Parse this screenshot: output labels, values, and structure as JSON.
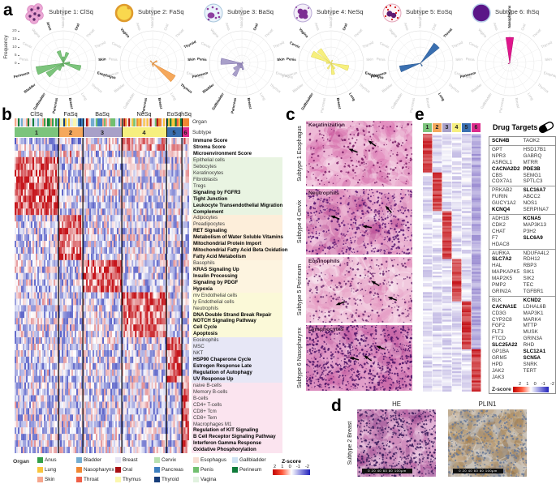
{
  "figure": {
    "panel_labels": {
      "a": "a",
      "b": "b",
      "c": "c",
      "d": "d",
      "e": "e"
    }
  },
  "panel_a": {
    "axis_label": "Frequency",
    "axis_ticks": [
      "20",
      "15",
      "10",
      "5",
      "0"
    ],
    "organs_clockwise": [
      "Nasopharynx",
      "Oral",
      "Throat",
      "Thyroid",
      "Skin",
      "Esophagus",
      "Thymus",
      "Lung",
      "Breast",
      "Pancreas",
      "Gallbladder",
      "Bladder",
      "Perineum",
      "Penis",
      "Cervix",
      "Vagina",
      "Anus"
    ],
    "subtypes": [
      {
        "num": "1",
        "title": "Subtype 1: ClSq",
        "color": "#7cc47c",
        "edge": "#58a258",
        "icon": "squamous-cell-cluster-icon",
        "bold_organs": [
          "Anus",
          "Oral",
          "Skin",
          "Esophagus",
          "Breast",
          "Pancreas",
          "Gallbladder",
          "Bladder",
          "Perineum"
        ],
        "frequencies": {
          "Perineum": 17,
          "Bladder": 12,
          "Gallbladder": 5,
          "Anus": 8,
          "Nasopharynx": 4,
          "Oral": 7,
          "Esophagus": 11,
          "Skin": 4,
          "Breast": 2,
          "Pancreas": 2
        }
      },
      {
        "num": "2",
        "title": "Subtype 2: FaSq",
        "color": "#f5a85c",
        "edge": "#d9852f",
        "icon": "fat-cell-icon",
        "bold_organs": [
          "Vagina",
          "Thyroid",
          "Skin",
          "Thymus",
          "Breast",
          "Pancreas"
        ],
        "frequencies": {
          "Thymus": 16,
          "Thyroid": 3,
          "Vagina": 2,
          "Breast": 2,
          "Pancreas": 1,
          "Skin": 1
        }
      },
      {
        "num": "3",
        "title": "Subtype 3: BaSq",
        "color": "#a89fc9",
        "edge": "#8678ad",
        "icon": "basal-cell-icon",
        "bold_organs": [
          "Penis",
          "Perineum",
          "Bladder",
          "Gallbladder",
          "Pancreas",
          "Breast",
          "Skin",
          "Oral"
        ],
        "frequencies": {
          "Penis": 13,
          "Gallbladder": 9,
          "Bladder": 6,
          "Breast": 4,
          "Pancreas": 3,
          "Perineum": 3,
          "Oral": 1,
          "Skin": 1
        }
      },
      {
        "num": "4",
        "title": "Subtype 4: NeSq",
        "color": "#f7f07e",
        "edge": "#ddd353",
        "icon": "neutrophil-icon",
        "bold_organs": [
          "Vagina",
          "Cervix",
          "Penis",
          "Gallbladder",
          "Breast",
          "Esophagus",
          "Lung",
          "Oral"
        ],
        "frequencies": {
          "Cervix": 13,
          "Vagina": 11,
          "Esophagus": 11,
          "Breast": 7,
          "Lung": 4,
          "Gallbladder": 4,
          "Penis": 3,
          "Oral": 2
        }
      },
      {
        "num": "5",
        "title": "Subtype 5: EoSq",
        "color": "#3a6fb0",
        "edge": "#2a568c",
        "icon": "eosinophil-icon",
        "bold_organs": [
          "Throat",
          "Perineum",
          "Lung"
        ],
        "frequencies": {
          "Throat": 15,
          "Perineum": 13,
          "Lung": 2
        }
      },
      {
        "num": "6",
        "title": "Subtype 6: IhSq",
        "color": "#e0168c",
        "edge": "#b30b6e",
        "icon": "lymphocyte-icon",
        "bold_organs": [
          "Nasopharynx",
          "Perineum"
        ],
        "frequencies": {
          "Nasopharynx": 16,
          "Perineum": 1
        }
      }
    ]
  },
  "panel_b": {
    "header_labels": [
      "ClSq",
      "FaSq",
      "BaSq",
      "NeSq",
      "EoSq",
      "IhSq"
    ],
    "annotation_labels": {
      "organ": "Organ",
      "subtype": "Subtype"
    },
    "subtype_numbers": [
      "1",
      "2",
      "3",
      "4",
      "5",
      "6"
    ],
    "subtype_colors": [
      "#7cc47c",
      "#f5a85c",
      "#a8a0c8",
      "#f6ef7f",
      "#3a6fb0",
      "#dc2a8c"
    ],
    "row_groups": [
      {
        "bg": "#ffffff",
        "rows": [
          {
            "label": "Immune Score",
            "bold": true
          },
          {
            "label": "Stroma Score",
            "bold": true
          },
          {
            "label": "Microenvironment Score",
            "bold": true
          }
        ]
      },
      {
        "bg": "#e9f4e2",
        "rows": [
          {
            "label": "Epithelial cells",
            "bold": false
          },
          {
            "label": "Sebocytes",
            "bold": false
          },
          {
            "label": "Keratinocytes",
            "bold": false
          },
          {
            "label": "Fibroblasts",
            "bold": false
          },
          {
            "label": "Tregs",
            "bold": false
          },
          {
            "label": "Signaling by FGFR3",
            "bold": true
          },
          {
            "label": "Tight Junction",
            "bold": true
          },
          {
            "label": "Leukocyte Transendothelial Migration",
            "bold": true
          },
          {
            "label": "Complement",
            "bold": true
          }
        ]
      },
      {
        "bg": "#fdeeda",
        "rows": [
          {
            "label": "Adipocytes",
            "bold": false
          },
          {
            "label": "Preadipocytes",
            "bold": false
          },
          {
            "label": "RET Signaling",
            "bold": true
          },
          {
            "label": "Metabolism of Water Soluble Vitamins",
            "bold": true
          },
          {
            "label": "Mitochondrial Protein Import",
            "bold": true
          },
          {
            "label": "Mitochondrial Fatty Acid Beta Oxidation",
            "bold": true
          },
          {
            "label": "Fatty Acid Metabolism",
            "bold": true
          }
        ]
      },
      {
        "bg": "#fdf4e0",
        "rows": [
          {
            "label": "Basophils",
            "bold": false
          },
          {
            "label": "KRAS Signaling Up",
            "bold": true
          },
          {
            "label": "Insulin Processing",
            "bold": true
          },
          {
            "label": "Signaling by PDGF",
            "bold": true
          },
          {
            "label": "Hypoxia",
            "bold": true
          }
        ]
      },
      {
        "bg": "#fbf9d8",
        "rows": [
          {
            "label": "mv Endothelial cells",
            "bold": false
          },
          {
            "label": "ly Endothelial cells",
            "bold": false
          },
          {
            "label": "Neutrophils",
            "bold": false
          },
          {
            "label": "DNA Double Strand Break Repair",
            "bold": true
          },
          {
            "label": "NOTCH Signaling Pathway",
            "bold": true
          },
          {
            "label": "Cell Cycle",
            "bold": true
          },
          {
            "label": "Apoptosis",
            "bold": true
          }
        ]
      },
      {
        "bg": "#e7e7f6",
        "rows": [
          {
            "label": "Eosinophils",
            "bold": false
          },
          {
            "label": "MSC",
            "bold": false
          },
          {
            "label": "NKT",
            "bold": false
          },
          {
            "label": "HSP90 Chaperone Cycle",
            "bold": true
          },
          {
            "label": "Estrogen Response Late",
            "bold": true
          },
          {
            "label": "Regulation of Autophagy",
            "bold": true
          },
          {
            "label": "UV Response Up",
            "bold": true
          }
        ]
      },
      {
        "bg": "#fbe4ef",
        "rows": [
          {
            "label": "naive B-cells",
            "bold": false
          },
          {
            "label": "Memory B-cells",
            "bold": false
          },
          {
            "label": "B-cells",
            "bold": false
          },
          {
            "label": "CD4+ T-cells",
            "bold": false
          },
          {
            "label": "CD8+ Tcm",
            "bold": false
          },
          {
            "label": "CD8+ Tem",
            "bold": false
          },
          {
            "label": "Macrophages M1",
            "bold": false
          },
          {
            "label": "Regulation of KIT Signaling",
            "bold": true
          },
          {
            "label": "B Cell Receptor Signaling Pathway",
            "bold": true
          },
          {
            "label": "Interferon Gamma Response",
            "bold": true
          },
          {
            "label": "Oxidative Phosphorylation",
            "bold": true
          }
        ]
      }
    ],
    "organ_legend_title": "Organ",
    "organ_legend": [
      {
        "name": "Anus",
        "color": "#34a047"
      },
      {
        "name": "Lung",
        "color": "#f8c43c"
      },
      {
        "name": "Skin",
        "color": "#f6a68c"
      },
      {
        "name": "Bladder",
        "color": "#74add1"
      },
      {
        "name": "Nasopharynx",
        "color": "#f08632"
      },
      {
        "name": "Throat",
        "color": "#ef5f47"
      },
      {
        "name": "Breast",
        "color": "#e8e6f5"
      },
      {
        "name": "Oral",
        "color": "#a80f13"
      },
      {
        "name": "Thymus",
        "color": "#fbf7ae"
      },
      {
        "name": "Cervix",
        "color": "#b8e0b0"
      },
      {
        "name": "Pancreas",
        "color": "#3d7fbf"
      },
      {
        "name": "Thyroid",
        "color": "#173d7a"
      },
      {
        "name": "Esophagus",
        "color": "#f8ddd3"
      },
      {
        "name": "Penis",
        "color": "#71bf6f"
      },
      {
        "name": "Vagina",
        "color": "#e1f2df"
      },
      {
        "name": "Gallbladder",
        "color": "#cfe2f3"
      },
      {
        "name": "Perineum",
        "color": "#0f7b3a"
      }
    ],
    "zscore": {
      "title": "Z-score",
      "ticks": [
        "2",
        "1",
        "0",
        "-1",
        "-2"
      ]
    }
  },
  "panel_c": {
    "images": [
      {
        "label": "Keratinization",
        "side_label": "Subtype 1 Esophagus"
      },
      {
        "label": "Neutrophils",
        "side_label": "Subtype 4 Cervix"
      },
      {
        "label": "Eosinophils",
        "side_label": "Subtype 5 Perineum"
      },
      {
        "label": "Lymphocytes",
        "side_label": "Subtype 6 Nasopharynx"
      }
    ]
  },
  "panel_d": {
    "side_label": "Subtype 2 Breast",
    "images": [
      {
        "title": "HE"
      },
      {
        "title": "PLIN1"
      }
    ],
    "scale_bar_label": "0 20 40 60 80 100μm"
  },
  "panel_e": {
    "column_numbers": [
      "1",
      "2",
      "3",
      "4",
      "5",
      "6"
    ],
    "column_colors": [
      "#7cc47c",
      "#f5a85c",
      "#a8a0c8",
      "#f6ef7f",
      "#3a6fb0",
      "#dc2a8c"
    ],
    "title": "Drug Targets",
    "title_icon": "pill-icon",
    "bold_genes": [
      "SCN4B",
      "CACNA2D2",
      "PDE3B",
      "SLC16A7",
      "KCNQ4",
      "KCNA5",
      "SLC6A9",
      "SLC7A2",
      "KCND2",
      "CACNA1E",
      "SLC25A22",
      "SLC12A1",
      "SCN5A"
    ],
    "boxes": [
      [
        [
          "SCN4B",
          "TAOK2"
        ]
      ],
      [
        [
          "GPT",
          "HSD17B1"
        ],
        [
          "NPR3",
          "GABRQ"
        ],
        [
          "ASRGL1",
          "MTRR"
        ],
        [
          "CACNA2D2",
          "PDE3B"
        ],
        [
          "CBS",
          "SEMG1"
        ],
        [
          "COX7A1",
          "SPTLC3"
        ]
      ],
      [
        [
          "PRKAB2",
          "SLC16A7"
        ],
        [
          "FURIN",
          "ABCC2"
        ],
        [
          "GUCY1A2",
          "NOS1"
        ],
        [
          "KCNQ4",
          "SERPINA7"
        ]
      ],
      [
        [
          "ADH1B",
          "KCNA5"
        ],
        [
          "CDK2",
          "MAP3K13"
        ],
        [
          "CHAT",
          "P3H2"
        ],
        [
          "F7",
          "SLC6A9"
        ],
        [
          "HDAC8",
          ""
        ]
      ],
      [
        [
          "AURKA",
          "NDUFA4L2"
        ],
        [
          "SLC7A2",
          "RDH12"
        ],
        [
          "HAL",
          "RBP3"
        ],
        [
          "MAPKAPK5",
          "SIK1"
        ],
        [
          "MAP2K5",
          "SIK2"
        ],
        [
          "PMP2",
          "TEC"
        ],
        [
          "GRIN2A",
          "TGFBR1"
        ]
      ],
      [
        [
          "BLK",
          "KCND2"
        ],
        [
          "CACNA1E",
          "LDHAL6B"
        ],
        [
          "CD3G",
          "MAP3K1"
        ],
        [
          "CYP2C8",
          "MARK4"
        ],
        [
          "FGF2",
          "MTTP"
        ],
        [
          "FLT3",
          "MUSK"
        ],
        [
          "FTCD",
          "GRIN3A"
        ],
        [
          "SLC25A22",
          "RHD"
        ],
        [
          "GP1BA",
          "SLC12A1"
        ],
        [
          "GRM5",
          "SCN5A"
        ],
        [
          "HPD",
          "SNRK"
        ],
        [
          "JAK2",
          "TERT"
        ],
        [
          "JAK3",
          ""
        ]
      ]
    ],
    "zscore": {
      "title": "Z-score",
      "ticks": [
        "2",
        "1",
        "0",
        "-1",
        "-2"
      ]
    }
  },
  "chart_data": [
    {
      "type": "radar",
      "title": "Subtype frequency by organ (polar wedge plots, panel a)",
      "angular_categories": [
        "Nasopharynx",
        "Oral",
        "Throat",
        "Thyroid",
        "Skin",
        "Esophagus",
        "Thymus",
        "Lung",
        "Breast",
        "Pancreas",
        "Gallbladder",
        "Bladder",
        "Perineum",
        "Penis",
        "Cervix",
        "Vagina",
        "Anus"
      ],
      "radial_axis": {
        "label": "Frequency",
        "ticks": [
          0,
          5,
          10,
          15,
          20
        ],
        "range": [
          0,
          20
        ]
      },
      "series": [
        {
          "name": "Subtype 1: ClSq",
          "color": "#7cc47c",
          "values": {
            "Perineum": 17,
            "Bladder": 12,
            "Gallbladder": 5,
            "Anus": 8,
            "Nasopharynx": 4,
            "Oral": 7,
            "Esophagus": 11,
            "Skin": 4,
            "Breast": 2,
            "Pancreas": 2
          }
        },
        {
          "name": "Subtype 2: FaSq",
          "color": "#f5a85c",
          "values": {
            "Thymus": 16,
            "Thyroid": 3,
            "Vagina": 2,
            "Breast": 2,
            "Pancreas": 1,
            "Skin": 1
          }
        },
        {
          "name": "Subtype 3: BaSq",
          "color": "#a89fc9",
          "values": {
            "Penis": 13,
            "Gallbladder": 9,
            "Bladder": 6,
            "Breast": 4,
            "Pancreas": 3,
            "Perineum": 3,
            "Oral": 1,
            "Skin": 1
          }
        },
        {
          "name": "Subtype 4: NeSq",
          "color": "#f7f07e",
          "values": {
            "Cervix": 13,
            "Vagina": 11,
            "Esophagus": 11,
            "Breast": 7,
            "Lung": 4,
            "Gallbladder": 4,
            "Penis": 3,
            "Oral": 2
          }
        },
        {
          "name": "Subtype 5: EoSq",
          "color": "#3a6fb0",
          "values": {
            "Throat": 15,
            "Perineum": 13,
            "Lung": 2
          }
        },
        {
          "name": "Subtype 6: IhSq",
          "color": "#e0168c",
          "values": {
            "Nasopharynx": 16,
            "Perineum": 1
          }
        }
      ]
    },
    {
      "type": "heatmap",
      "title": "Cell-type / pathway enrichment heatmap (panel b)",
      "columns_grouped_by": [
        "ClSq",
        "FaSq",
        "BaSq",
        "NeSq",
        "EoSq",
        "IhSq"
      ],
      "value_scale": {
        "label": "Z-score",
        "range": [
          -2,
          2
        ],
        "colors": [
          "#2222bb",
          "#ffffff",
          "#c00000"
        ]
      },
      "pattern": "each row-group is enriched (red, high Z-score) in its matching subtype column group and depleted (blue) elsewhere"
    },
    {
      "type": "heatmap",
      "title": "Drug-target gene expression heatmap (panel e)",
      "columns": [
        "1",
        "2",
        "3",
        "4",
        "5",
        "6"
      ],
      "value_scale": {
        "label": "Z-score",
        "range": [
          -2,
          2
        ],
        "colors": [
          "#2222bb",
          "#ffffff",
          "#c00000"
        ]
      },
      "pattern": "block-diagonal: each gene block is red (up-regulated) in its subtype column, lavender/blue elsewhere"
    }
  ]
}
